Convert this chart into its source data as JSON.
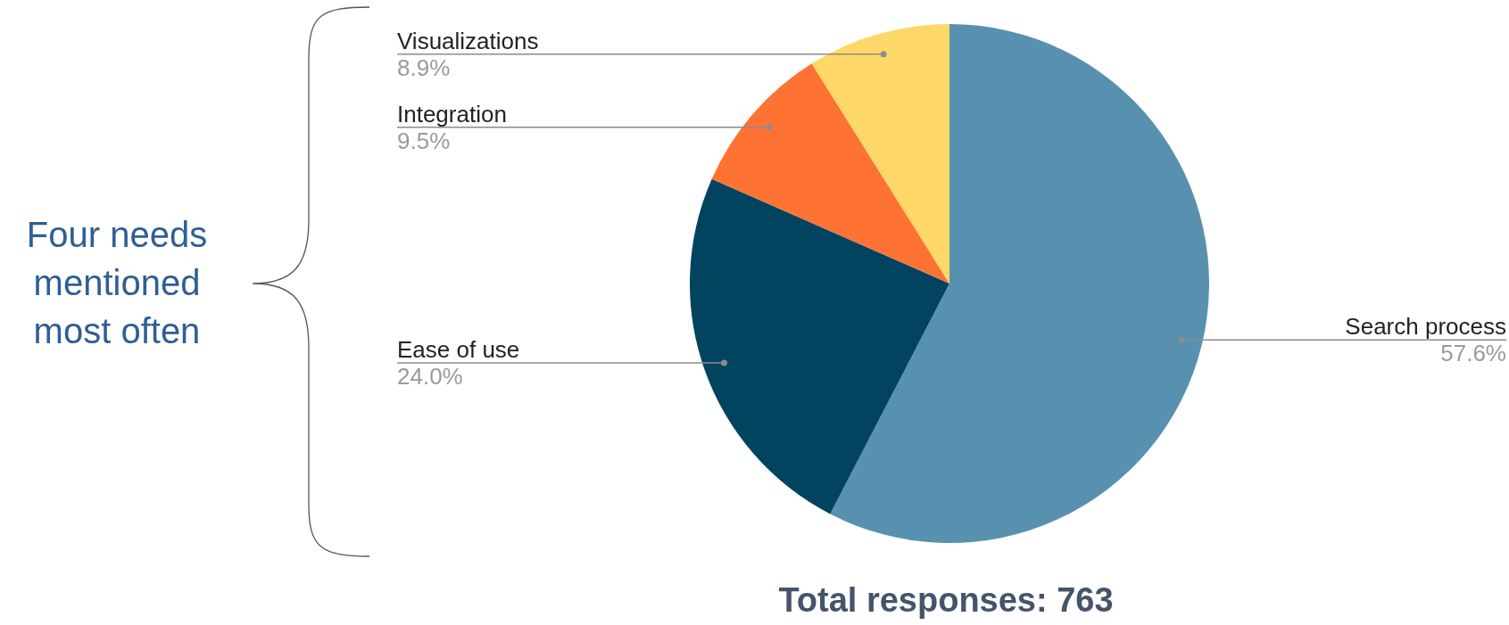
{
  "chart_data": {
    "type": "pie",
    "categories": [
      "Search process",
      "Ease of use",
      "Integration",
      "Visualizations"
    ],
    "values": [
      57.6,
      24.0,
      9.5,
      8.9
    ],
    "colors": [
      "#5891b0",
      "#02445f",
      "#fe7233",
      "#fdd868"
    ],
    "value_labels": [
      "57.6%",
      "24.0%",
      "9.5%",
      "8.9%"
    ],
    "legend": false,
    "annotations": [
      "Four needs mentioned most often",
      "Total responses: 763"
    ]
  }
}
